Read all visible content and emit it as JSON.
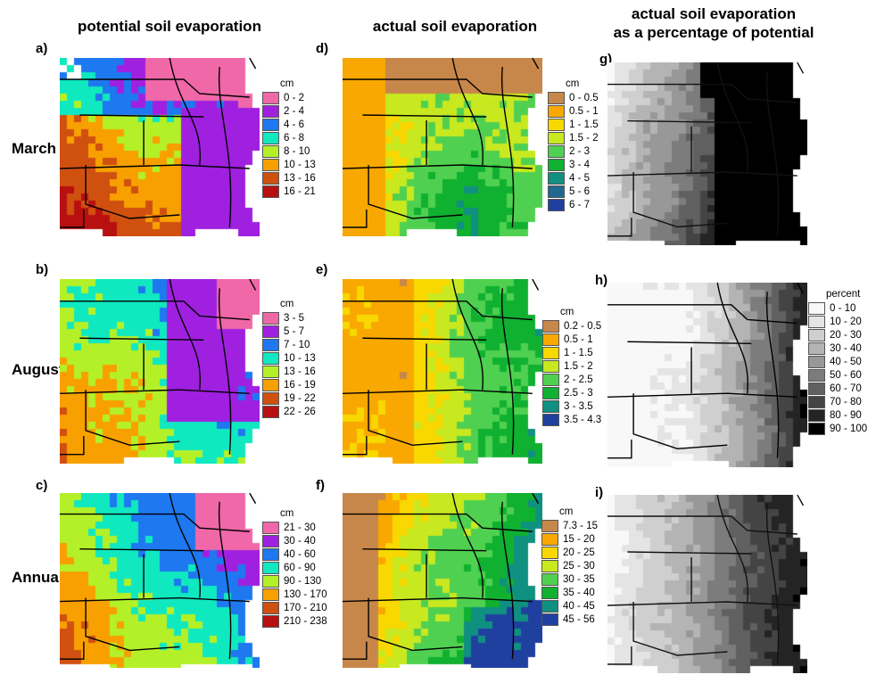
{
  "columns": [
    {
      "title": "potential soil evaporation"
    },
    {
      "title": "actual soil evaporation"
    },
    {
      "title_line1": "actual soil evaporation",
      "title_line2": "as a percentage of potential"
    }
  ],
  "rows": [
    {
      "label": "March"
    },
    {
      "label": "August"
    },
    {
      "label": "Annual"
    }
  ],
  "panels": [
    {
      "id": "a",
      "letter": "a)",
      "unit": "cm",
      "kind": "pot",
      "month": "march",
      "classes": [
        {
          "label": "0 - 2",
          "color": "#f068a8"
        },
        {
          "label": "2 - 4",
          "color": "#a020e0"
        },
        {
          "label": "4 - 6",
          "color": "#1e78f0"
        },
        {
          "label": "6 - 8",
          "color": "#10e8c0"
        },
        {
          "label": "8 - 10",
          "color": "#b4f028"
        },
        {
          "label": "10 - 13",
          "color": "#f8a000"
        },
        {
          "label": "13 - 16",
          "color": "#d05010"
        },
        {
          "label": "16 - 21",
          "color": "#b81010"
        }
      ]
    },
    {
      "id": "b",
      "letter": "b)",
      "unit": "cm",
      "kind": "pot",
      "month": "august",
      "classes": [
        {
          "label": "3 - 5",
          "color": "#f068a8"
        },
        {
          "label": "5 - 7",
          "color": "#a020e0"
        },
        {
          "label": "7 - 10",
          "color": "#1e78f0"
        },
        {
          "label": "10 - 13",
          "color": "#10e8c0"
        },
        {
          "label": "13 - 16",
          "color": "#b4f028"
        },
        {
          "label": "16 - 19",
          "color": "#f8a000"
        },
        {
          "label": "19 - 22",
          "color": "#d05010"
        },
        {
          "label": "22 - 26",
          "color": "#b81010"
        }
      ]
    },
    {
      "id": "c",
      "letter": "c)",
      "unit": "cm",
      "kind": "pot",
      "month": "annual",
      "classes": [
        {
          "label": "21 - 30",
          "color": "#f068a8"
        },
        {
          "label": "30 - 40",
          "color": "#a020e0"
        },
        {
          "label": "40 - 60",
          "color": "#1e78f0"
        },
        {
          "label": "60 - 90",
          "color": "#10e8c0"
        },
        {
          "label": "90 - 130",
          "color": "#b4f028"
        },
        {
          "label": "130 - 170",
          "color": "#f8a000"
        },
        {
          "label": "170 - 210",
          "color": "#d05010"
        },
        {
          "label": "210 - 238",
          "color": "#b81010"
        }
      ]
    },
    {
      "id": "d",
      "letter": "d)",
      "unit": "cm",
      "kind": "act",
      "month": "march",
      "classes": [
        {
          "label": "0 - 0.5",
          "color": "#c8874a"
        },
        {
          "label": "0.5 - 1",
          "color": "#f8a800"
        },
        {
          "label": "1 - 1.5",
          "color": "#f8d800"
        },
        {
          "label": "1.5 - 2",
          "color": "#c8e820"
        },
        {
          "label": "2 - 3",
          "color": "#50d050"
        },
        {
          "label": "3 - 4",
          "color": "#10b030"
        },
        {
          "label": "4 - 5",
          "color": "#109080"
        },
        {
          "label": "5 - 6",
          "color": "#206890"
        },
        {
          "label": "6 - 7",
          "color": "#2040a0"
        }
      ]
    },
    {
      "id": "e",
      "letter": "e)",
      "unit": "cm",
      "kind": "act",
      "month": "august",
      "classes": [
        {
          "label": "0.2 - 0.5",
          "color": "#c8874a"
        },
        {
          "label": "0.5 - 1",
          "color": "#f8a800"
        },
        {
          "label": "1 - 1.5",
          "color": "#f8d800"
        },
        {
          "label": "1.5 - 2",
          "color": "#c8e820"
        },
        {
          "label": "2 - 2.5",
          "color": "#50d050"
        },
        {
          "label": "2.5 - 3",
          "color": "#10b030"
        },
        {
          "label": "3 - 3.5",
          "color": "#109080"
        },
        {
          "label": "3.5 - 4.3",
          "color": "#2040a0"
        }
      ]
    },
    {
      "id": "f",
      "letter": "f)",
      "unit": "cm",
      "kind": "act",
      "month": "annual",
      "classes": [
        {
          "label": "7.3 - 15",
          "color": "#c8874a"
        },
        {
          "label": "15 - 20",
          "color": "#f8a800"
        },
        {
          "label": "20 - 25",
          "color": "#f8d800"
        },
        {
          "label": "25 - 30",
          "color": "#c8e820"
        },
        {
          "label": "30 - 35",
          "color": "#50d050"
        },
        {
          "label": "35 - 40",
          "color": "#10b030"
        },
        {
          "label": "40 - 45",
          "color": "#109080"
        },
        {
          "label": "45 - 56",
          "color": "#2040a0"
        }
      ]
    },
    {
      "id": "g",
      "letter": "g)",
      "unit": "",
      "kind": "pct",
      "month": "march",
      "classes": []
    },
    {
      "id": "h",
      "letter": "h)",
      "unit": "percent",
      "kind": "pct",
      "month": "august",
      "classes": [
        {
          "label": "0 - 10",
          "color": "#f8f8f8"
        },
        {
          "label": "10 - 20",
          "color": "#e4e4e4"
        },
        {
          "label": "20 - 30",
          "color": "#cfcfcf"
        },
        {
          "label": "30 - 40",
          "color": "#b4b4b4"
        },
        {
          "label": "40 - 50",
          "color": "#989898"
        },
        {
          "label": "50 - 60",
          "color": "#7c7c7c"
        },
        {
          "label": "60 - 70",
          "color": "#606060"
        },
        {
          "label": "70 - 80",
          "color": "#444444"
        },
        {
          "label": "80 - 90",
          "color": "#242424"
        },
        {
          "label": "90 - 100",
          "color": "#000000"
        }
      ]
    },
    {
      "id": "i",
      "letter": "i)",
      "unit": "",
      "kind": "pct",
      "month": "annual",
      "classes": []
    }
  ]
}
